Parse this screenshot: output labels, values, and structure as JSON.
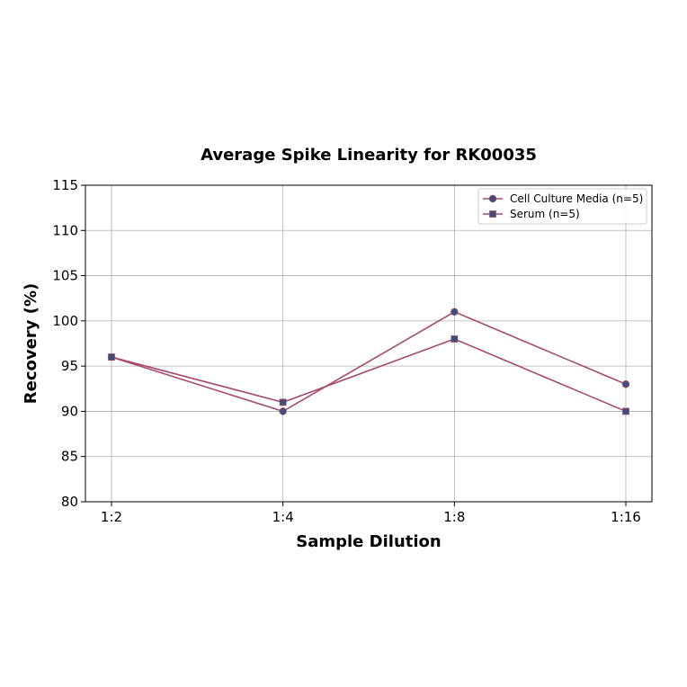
{
  "chart_data": {
    "type": "line",
    "title": "Average Spike Linearity for RK00035",
    "xlabel": "Sample Dilution",
    "ylabel": "Recovery (%)",
    "categories": [
      "1:2",
      "1:4",
      "1:8",
      "1:16"
    ],
    "ylim": [
      80,
      115
    ],
    "yticks": [
      80,
      85,
      90,
      95,
      100,
      105,
      110,
      115
    ],
    "grid": true,
    "legend_position": "top-right",
    "line_color": "#a84a6e",
    "marker_color": "#3a4f7a",
    "series": [
      {
        "name": "Cell Culture Media (n=5)",
        "marker": "circle",
        "values": [
          96,
          90,
          101,
          93
        ]
      },
      {
        "name": "Serum (n=5)",
        "marker": "square",
        "values": [
          96,
          91,
          98,
          90
        ]
      }
    ]
  }
}
